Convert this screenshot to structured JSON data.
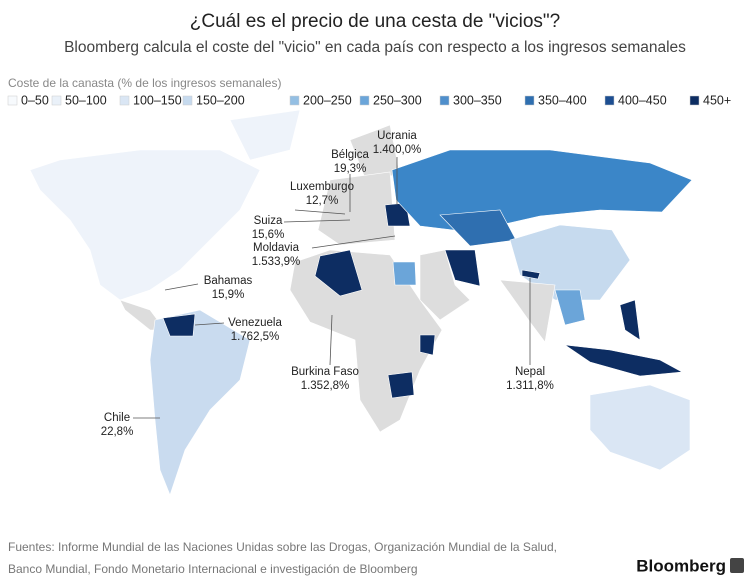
{
  "header": {
    "title": "¿Cuál es el precio de una cesta de \"vicios\"?",
    "subtitle": "Bloomberg calcula el coste del \"vicio\" en cada país con respecto a los ingresos semanales"
  },
  "legend": {
    "title": "Coste de la canasta (% de los ingresos semanales)",
    "items": [
      {
        "label": "0–50",
        "color": "#f7fafd"
      },
      {
        "label": "50–100",
        "color": "#eaf1f9"
      },
      {
        "label": "100–150",
        "color": "#dae6f4"
      },
      {
        "label": "150–200",
        "color": "#c6daee"
      },
      {
        "label": "200–250",
        "color": "#94bfe3"
      },
      {
        "label": "250–300",
        "color": "#6ba5d9"
      },
      {
        "label": "300–350",
        "color": "#4f8fcc"
      },
      {
        "label": "350–400",
        "color": "#2f6fb0"
      },
      {
        "label": "400–450",
        "color": "#1d4e91"
      },
      {
        "label": "450+",
        "color": "#0d2d62"
      }
    ]
  },
  "annotations": [
    {
      "name": "Ucrania",
      "value": "1.400,0%"
    },
    {
      "name": "Bélgica",
      "value": "19,3%"
    },
    {
      "name": "Luxemburgo",
      "value": "12,7%"
    },
    {
      "name": "Suiza",
      "value": "15,6%"
    },
    {
      "name": "Moldavia",
      "value": "1.533,9%"
    },
    {
      "name": "Bahamas",
      "value": "15,9%"
    },
    {
      "name": "Venezuela",
      "value": "1.762,5%"
    },
    {
      "name": "Burkina Faso",
      "value": "1.352,8%"
    },
    {
      "name": "Nepal",
      "value": "1.311,8%"
    },
    {
      "name": "Chile",
      "value": "22,8%"
    }
  ],
  "footer": {
    "sources_line1": "Fuentes: Informe Mundial de las Naciones Unidas sobre las Drogas, Organización Mundial de la Salud,",
    "sources_line2": "Banco Mundial, Fondo Monetario Internacional e investigación de Bloomberg",
    "brand": "Bloomberg"
  }
}
